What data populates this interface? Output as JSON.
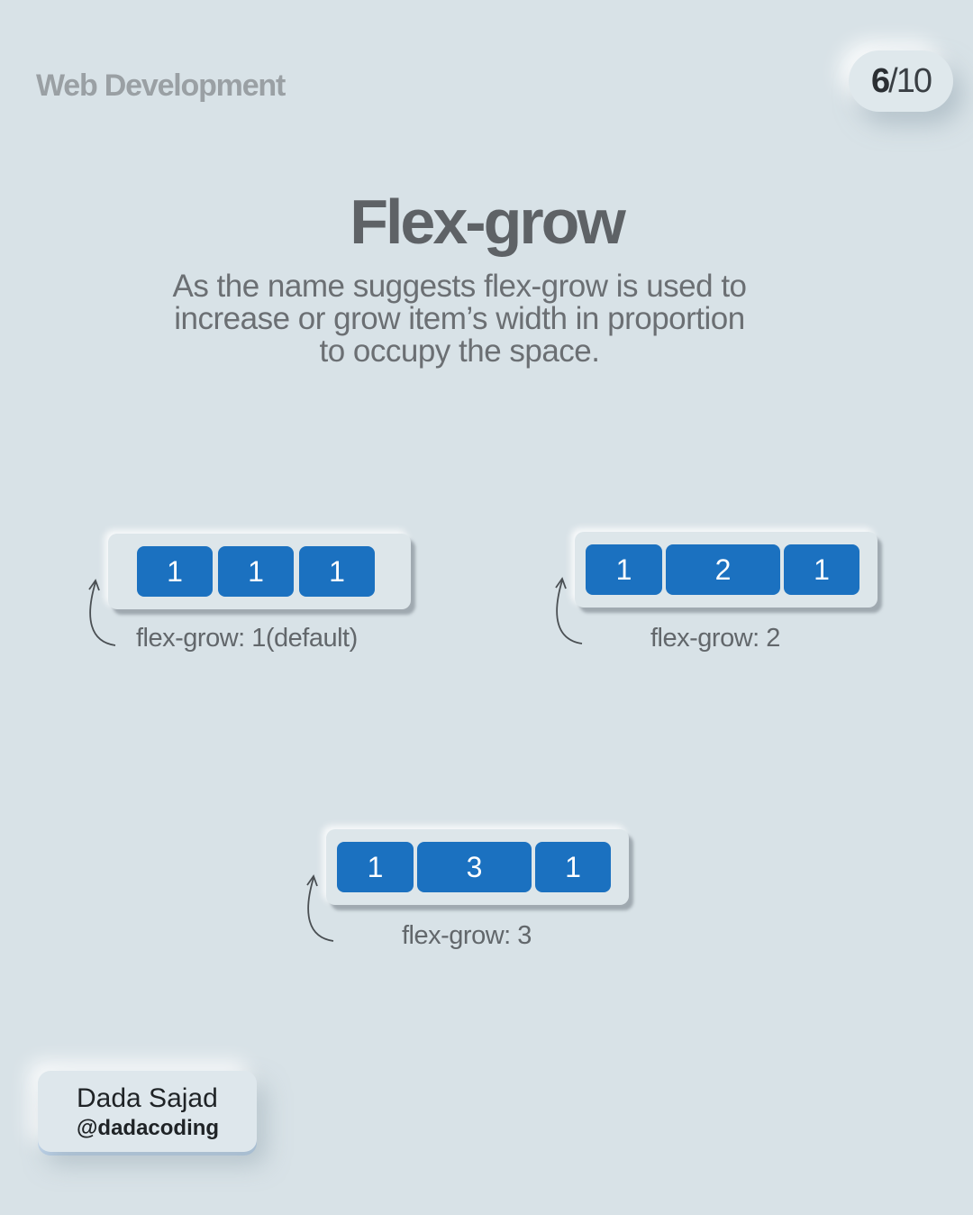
{
  "header": {
    "category": "Web Development",
    "page_current": "6",
    "page_total": "/10"
  },
  "title": "Flex-grow",
  "description": "As the name suggests flex-grow is used to increase or grow item’s width in proportion to occupy the space.",
  "examples": [
    {
      "caption": "flex-grow: 1(default)",
      "items": [
        "1",
        "1",
        "1"
      ]
    },
    {
      "caption": "flex-grow: 2",
      "items": [
        "1",
        "2",
        "1"
      ]
    },
    {
      "caption": "flex-grow: 3",
      "items": [
        "1",
        "3",
        "1"
      ]
    }
  ],
  "colors": {
    "background": "#d8e2e7",
    "item_fill": "#1b71c0",
    "title_text": "#5e6266"
  },
  "author": {
    "name": "Dada Sajad",
    "handle": "@dadacoding"
  }
}
